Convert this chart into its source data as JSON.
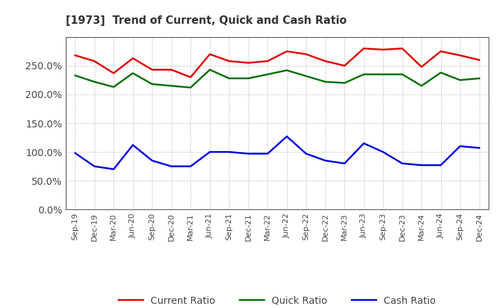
{
  "title": "[1973]  Trend of Current, Quick and Cash Ratio",
  "x_labels": [
    "Sep-19",
    "Dec-19",
    "Mar-20",
    "Jun-20",
    "Sep-20",
    "Dec-20",
    "Mar-21",
    "Jun-21",
    "Sep-21",
    "Dec-21",
    "Mar-22",
    "Jun-22",
    "Sep-22",
    "Dec-22",
    "Mar-23",
    "Jun-23",
    "Sep-23",
    "Dec-23",
    "Mar-24",
    "Jun-24",
    "Sep-24",
    "Dec-24"
  ],
  "current_ratio": [
    268,
    258,
    237,
    263,
    243,
    243,
    230,
    270,
    258,
    255,
    258,
    275,
    270,
    258,
    250,
    280,
    278,
    280,
    248,
    275,
    268,
    260
  ],
  "quick_ratio": [
    233,
    222,
    213,
    237,
    218,
    215,
    212,
    243,
    228,
    228,
    235,
    242,
    232,
    222,
    220,
    235,
    235,
    235,
    215,
    238,
    225,
    228
  ],
  "cash_ratio": [
    98,
    75,
    70,
    112,
    85,
    75,
    75,
    100,
    100,
    97,
    97,
    127,
    97,
    85,
    80,
    115,
    100,
    80,
    77,
    77,
    110,
    107
  ],
  "current_color": "#e00000",
  "quick_color": "#007000",
  "cash_color": "#0000dd",
  "ylim": [
    0,
    300
  ],
  "yticks": [
    0,
    50,
    100,
    150,
    200,
    250
  ],
  "ytick_labels": [
    "0.0%",
    "50.0%",
    "100.0%",
    "150.0%",
    "200.0%",
    "250.0%"
  ],
  "background_color": "#ffffff",
  "grid_color": "#aaaaaa",
  "title_color": "#333333",
  "tick_color": "#444444",
  "legend_labels": [
    "Current Ratio",
    "Quick Ratio",
    "Cash Ratio"
  ],
  "linewidth": 1.8
}
